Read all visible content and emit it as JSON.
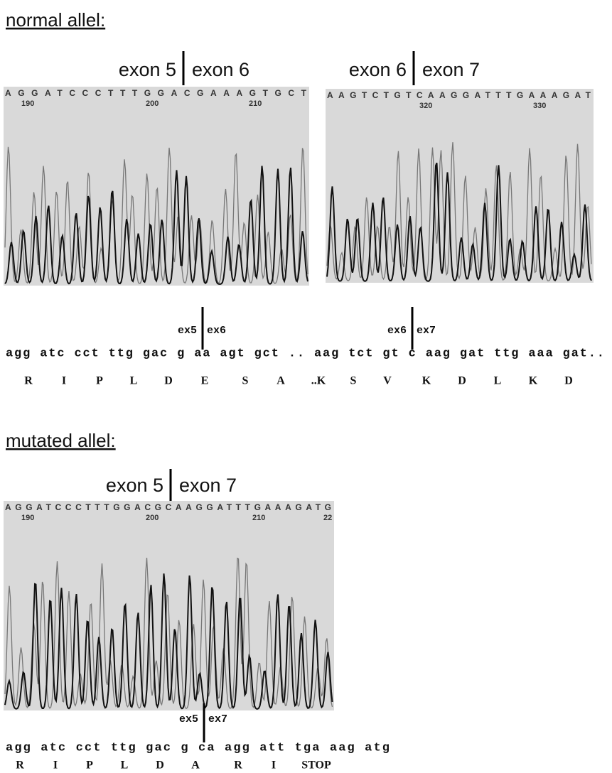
{
  "sections": [
    {
      "heading": "normal allel:",
      "panels": [
        {
          "exons": [
            "exon 5",
            "exon 6"
          ],
          "sequence": "AGGATCCCTTTGGACGAAAGTGCT",
          "positions": [
            "190",
            "200",
            "210"
          ]
        },
        {
          "exons": [
            "exon 6",
            "exon 7"
          ],
          "sequence": "AAGTCTGTCAAGGATTTGAAAGAT",
          "positions": [
            "320",
            "330"
          ]
        }
      ],
      "junctions": [
        [
          "ex5",
          "ex6"
        ],
        [
          "ex6",
          "ex7"
        ]
      ],
      "codons": "agg atc cct ttg gac g aa agt gct .. aag tct gt c aag gat ttg aaa gat..",
      "amino_acids": [
        "R",
        "I",
        "P",
        "L",
        "D",
        "E",
        "S",
        "A",
        "..K",
        "S",
        "V",
        "K",
        "D",
        "L",
        "K",
        "D"
      ]
    },
    {
      "heading": "mutated allel:",
      "panels": [
        {
          "exons": [
            "exon 5",
            "exon 7"
          ],
          "sequence": "AGGATCCCTTTGGACGCAAGGATTTGAAAGATG",
          "positions": [
            "190",
            "200",
            "210",
            "22"
          ]
        }
      ],
      "junctions": [
        [
          "ex5",
          "ex7"
        ]
      ],
      "codons": "agg atc cct ttg gac g ca agg att tga aag atg",
      "amino_acids": [
        "R",
        "I",
        "P",
        "L",
        "D",
        "A",
        "R",
        "I",
        "STOP"
      ]
    }
  ]
}
